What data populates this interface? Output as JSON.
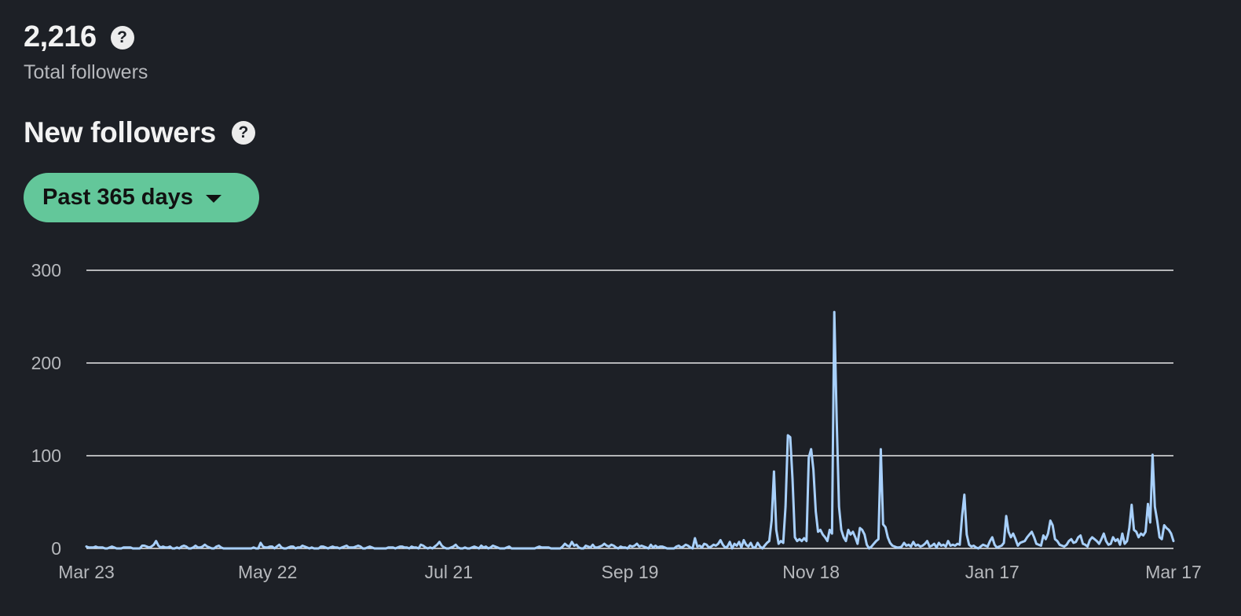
{
  "summary": {
    "total_followers": "2,216",
    "total_label": "Total followers"
  },
  "section": {
    "title": "New followers"
  },
  "help_icon_glyph": "?",
  "range_selector": {
    "label": "Past 365 days"
  },
  "colors": {
    "background": "#1d2026",
    "line": "#a8d0fb",
    "grid": "#e8e8e8",
    "button": "#63c79a"
  },
  "chart_data": {
    "type": "line",
    "title": "",
    "xlabel": "",
    "ylabel": "",
    "ylim": [
      0,
      300
    ],
    "yticks": [
      0,
      100,
      200,
      300
    ],
    "x_tick_labels": [
      "Mar 23",
      "May 22",
      "Jul 21",
      "Sep 19",
      "Nov 18",
      "Jan 17",
      "Mar 17"
    ],
    "grid": true,
    "legend": "none",
    "series": [
      {
        "values": [
          2,
          1,
          1,
          1,
          2,
          1,
          1,
          1,
          0,
          0,
          1,
          2,
          1,
          0,
          0,
          0,
          1,
          1,
          1,
          1,
          0,
          0,
          0,
          0,
          3,
          3,
          2,
          1,
          2,
          4,
          8,
          3,
          1,
          2,
          1,
          1,
          2,
          0,
          0,
          1,
          0,
          2,
          3,
          2,
          0,
          0,
          1,
          3,
          1,
          1,
          2,
          4,
          2,
          1,
          0,
          0,
          2,
          3,
          1,
          0,
          0,
          0,
          0,
          0,
          0,
          0,
          0,
          0,
          0,
          0,
          0,
          0,
          1,
          0,
          0,
          6,
          2,
          1,
          1,
          2,
          2,
          0,
          2,
          4,
          1,
          0,
          0,
          1,
          2,
          2,
          0,
          1,
          1,
          3,
          2,
          1,
          0,
          1,
          0,
          0,
          0,
          2,
          2,
          1,
          0,
          1,
          2,
          1,
          1,
          0,
          1,
          2,
          3,
          1,
          1,
          1,
          2,
          3,
          2,
          0,
          0,
          1,
          2,
          1,
          0,
          0,
          0,
          0,
          0,
          0,
          1,
          1,
          1,
          0,
          1,
          2,
          2,
          1,
          1,
          0,
          2,
          1,
          1,
          0,
          4,
          3,
          1,
          0,
          1,
          0,
          2,
          4,
          7,
          3,
          1,
          0,
          0,
          1,
          2,
          4,
          1,
          0,
          0,
          1,
          0,
          0,
          1,
          2,
          1,
          0,
          3,
          1,
          2,
          0,
          1,
          3,
          2,
          1,
          0,
          0,
          0,
          1,
          2,
          0,
          0,
          0,
          0,
          0,
          0,
          0,
          0,
          0,
          0,
          0,
          1,
          2,
          1,
          1,
          1,
          1,
          0,
          0,
          0,
          0,
          0,
          2,
          5,
          3,
          2,
          7,
          3,
          4,
          1,
          0,
          0,
          3,
          2,
          1,
          4,
          1,
          1,
          2,
          3,
          5,
          3,
          2,
          4,
          3,
          1,
          0,
          2,
          1,
          1,
          0,
          3,
          2,
          3,
          5,
          2,
          3,
          2,
          1,
          0,
          4,
          1,
          3,
          1,
          2,
          2,
          1,
          0,
          0,
          0,
          0,
          2,
          3,
          1,
          2,
          4,
          3,
          1,
          0,
          11,
          2,
          3,
          1,
          5,
          4,
          1,
          2,
          4,
          3,
          5,
          9,
          4,
          1,
          2,
          7,
          0,
          5,
          3,
          7,
          1,
          9,
          4,
          2,
          6,
          1,
          1,
          6,
          2,
          0,
          3,
          6,
          8,
          30,
          83,
          20,
          5,
          8,
          6,
          45,
          122,
          120,
          75,
          12,
          8,
          10,
          8,
          11,
          8,
          98,
          107,
          85,
          40,
          18,
          20,
          15,
          12,
          8,
          20,
          16,
          255,
          140,
          45,
          20,
          12,
          8,
          20,
          15,
          18,
          12,
          5,
          22,
          20,
          15,
          4,
          0,
          2,
          5,
          8,
          10,
          107,
          26,
          23,
          12,
          6,
          3,
          2,
          1,
          1,
          2,
          6,
          3,
          4,
          2,
          7,
          3,
          4,
          2,
          3,
          5,
          8,
          2,
          3,
          5,
          1,
          6,
          3,
          4,
          2,
          8,
          3,
          4,
          3,
          5,
          4,
          35,
          58,
          15,
          4,
          2,
          3,
          1,
          0,
          2,
          4,
          3,
          2,
          8,
          12,
          4,
          1,
          2,
          3,
          6,
          35,
          18,
          12,
          16,
          10,
          3,
          6,
          7,
          8,
          12,
          15,
          18,
          12,
          5,
          4,
          3,
          14,
          10,
          16,
          30,
          25,
          10,
          8,
          4,
          3,
          2,
          4,
          8,
          10,
          6,
          7,
          12,
          14,
          5,
          4,
          2,
          9,
          12,
          10,
          8,
          5,
          10,
          16,
          8,
          4,
          5,
          12,
          8,
          10,
          4,
          16,
          5,
          8,
          22,
          47,
          20,
          18,
          12,
          16,
          14,
          18,
          48,
          28,
          101,
          45,
          30,
          12,
          10,
          25,
          22,
          20,
          16,
          8
        ]
      }
    ]
  }
}
